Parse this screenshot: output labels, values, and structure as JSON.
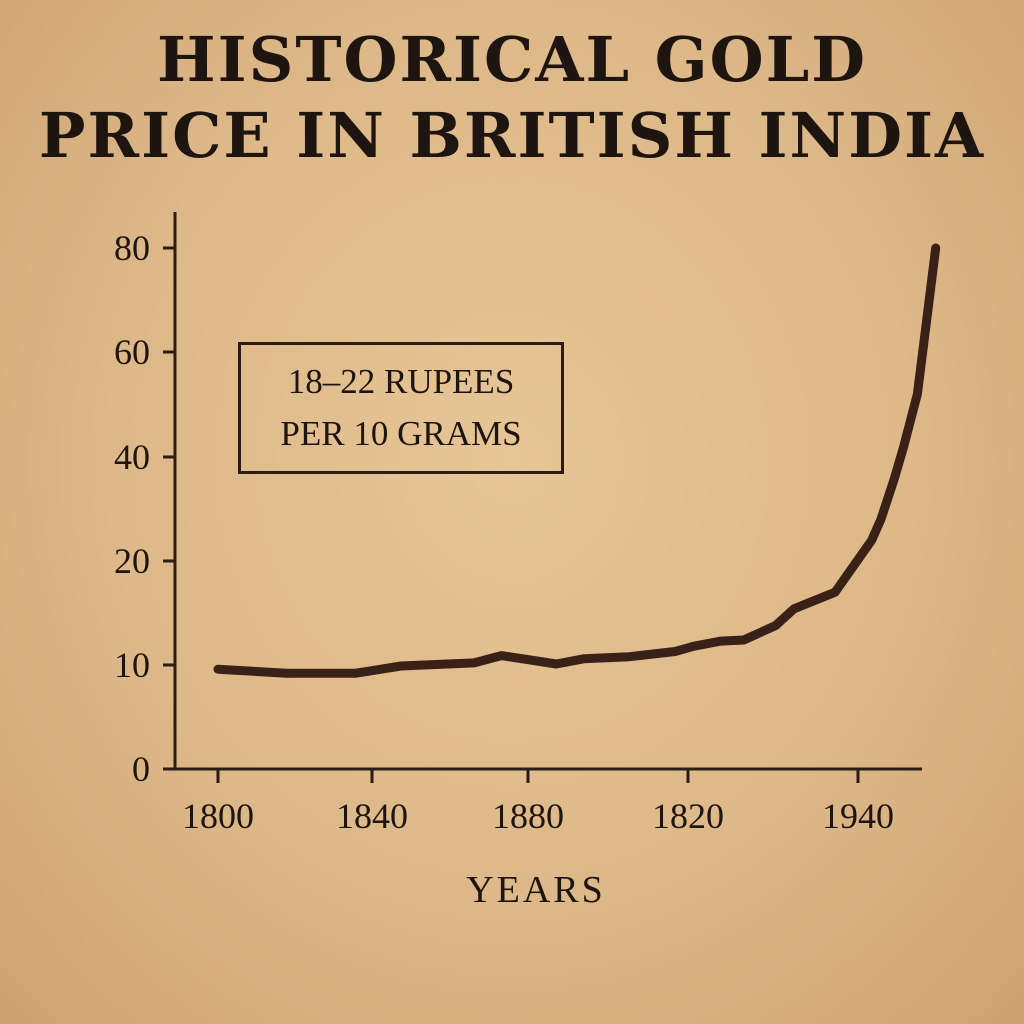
{
  "title_lines": [
    "HISTORICAL GOLD",
    "PRICE IN BRITISH INDIA"
  ],
  "chart_data": {
    "type": "line",
    "title": "HISTORICAL GOLD PRICE IN BRITISH INDIA",
    "xlabel": "YEARS",
    "ylabel": "",
    "x_tick_labels": [
      "1800",
      "1840",
      "1880",
      "1820",
      "1940"
    ],
    "y_ticks": [
      0,
      10,
      20,
      40,
      60,
      80
    ],
    "annotation_lines": [
      "18–22 RUPEES",
      "PER 10 GRAMS"
    ],
    "grid": false,
    "line_color": "#3a2118",
    "series": [
      {
        "x": [
          1800,
          1815,
          1830,
          1840,
          1856,
          1862,
          1874,
          1880,
          1890,
          1900,
          1904,
          1910,
          1915,
          1922,
          1926,
          1935,
          1943,
          1945,
          1948,
          1950,
          1953,
          1955,
          1957
        ],
        "values": [
          9.6,
          9.2,
          9.2,
          9.9,
          10.2,
          10.9,
          10.1,
          10.6,
          10.8,
          11.3,
          11.8,
          12.3,
          12.4,
          13.8,
          15.4,
          17.0,
          24.0,
          28.0,
          36.0,
          42.0,
          52.0,
          66.0,
          80.0
        ]
      }
    ]
  }
}
